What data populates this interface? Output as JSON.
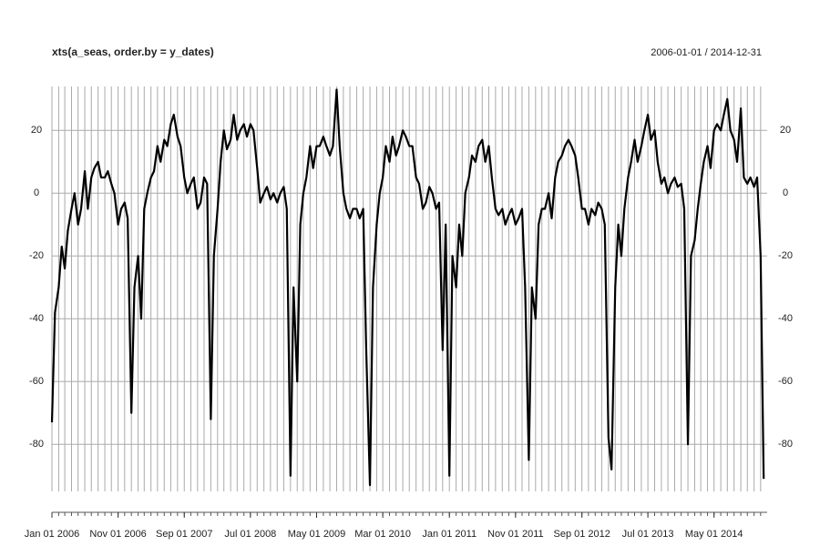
{
  "chart_data": {
    "type": "line",
    "title": "xts(a_seas, order.by = y_dates)",
    "subtitle": "2006-01-01 / 2014-12-31",
    "grid": true,
    "x_grid_interval": "month",
    "xlim": [
      "2006-01-01",
      "2014-12-31"
    ],
    "xticks": [
      {
        "value": "2006-01-01",
        "label": "Jan 01 2006"
      },
      {
        "value": "2006-11-01",
        "label": "Nov 01 2006"
      },
      {
        "value": "2007-09-01",
        "label": "Sep 01 2007"
      },
      {
        "value": "2008-07-01",
        "label": "Jul 01 2008"
      },
      {
        "value": "2009-05-01",
        "label": "May 01 2009"
      },
      {
        "value": "2010-03-01",
        "label": "Mar 01 2010"
      },
      {
        "value": "2011-01-01",
        "label": "Jan 01 2011"
      },
      {
        "value": "2011-11-01",
        "label": "Nov 01 2011"
      },
      {
        "value": "2012-09-01",
        "label": "Sep 01 2012"
      },
      {
        "value": "2013-07-01",
        "label": "Jul 01 2013"
      },
      {
        "value": "2014-05-01",
        "label": "May 01 2014"
      }
    ],
    "ylim": [
      -95,
      34
    ],
    "yticks": [
      -80,
      -60,
      -40,
      -20,
      0,
      20
    ],
    "x": [
      "2006-01-01",
      "2006-01-15",
      "2006-02-01",
      "2006-02-15",
      "2006-03-01",
      "2006-03-15",
      "2006-04-01",
      "2006-04-15",
      "2006-05-01",
      "2006-05-15",
      "2006-06-01",
      "2006-06-15",
      "2006-07-01",
      "2006-07-15",
      "2006-08-01",
      "2006-08-15",
      "2006-09-01",
      "2006-09-15",
      "2006-10-01",
      "2006-10-15",
      "2006-11-01",
      "2006-11-15",
      "2006-12-01",
      "2006-12-15",
      "2007-01-01",
      "2007-01-15",
      "2007-02-01",
      "2007-02-15",
      "2007-03-01",
      "2007-03-15",
      "2007-04-01",
      "2007-04-15",
      "2007-05-01",
      "2007-05-15",
      "2007-06-01",
      "2007-06-15",
      "2007-07-01",
      "2007-07-15",
      "2007-08-01",
      "2007-08-15",
      "2007-09-01",
      "2007-09-15",
      "2007-10-01",
      "2007-10-15",
      "2007-11-01",
      "2007-11-15",
      "2007-12-01",
      "2007-12-15",
      "2008-01-01",
      "2008-01-15",
      "2008-02-01",
      "2008-02-15",
      "2008-03-01",
      "2008-03-15",
      "2008-04-01",
      "2008-04-15",
      "2008-05-01",
      "2008-05-15",
      "2008-06-01",
      "2008-06-15",
      "2008-07-01",
      "2008-07-15",
      "2008-08-01",
      "2008-08-15",
      "2008-09-01",
      "2008-09-15",
      "2008-10-01",
      "2008-10-15",
      "2008-11-01",
      "2008-11-15",
      "2008-12-01",
      "2008-12-15",
      "2009-01-01",
      "2009-01-15",
      "2009-02-01",
      "2009-02-15",
      "2009-03-01",
      "2009-03-15",
      "2009-04-01",
      "2009-04-15",
      "2009-05-01",
      "2009-05-15",
      "2009-06-01",
      "2009-06-15",
      "2009-07-01",
      "2009-07-15",
      "2009-08-01",
      "2009-08-15",
      "2009-09-01",
      "2009-09-15",
      "2009-10-01",
      "2009-10-15",
      "2009-11-01",
      "2009-11-15",
      "2009-12-01",
      "2009-12-15",
      "2010-01-01",
      "2010-01-15",
      "2010-02-01",
      "2010-02-15",
      "2010-03-01",
      "2010-03-15",
      "2010-04-01",
      "2010-04-15",
      "2010-05-01",
      "2010-05-15",
      "2010-06-01",
      "2010-06-15",
      "2010-07-01",
      "2010-07-15",
      "2010-08-01",
      "2010-08-15",
      "2010-09-01",
      "2010-09-15",
      "2010-10-01",
      "2010-10-15",
      "2010-11-01",
      "2010-11-15",
      "2010-12-01",
      "2010-12-15",
      "2011-01-01",
      "2011-01-15",
      "2011-02-01",
      "2011-02-15",
      "2011-03-01",
      "2011-03-15",
      "2011-04-01",
      "2011-04-15",
      "2011-05-01",
      "2011-05-15",
      "2011-06-01",
      "2011-06-15",
      "2011-07-01",
      "2011-07-15",
      "2011-08-01",
      "2011-08-15",
      "2011-09-01",
      "2011-09-15",
      "2011-10-01",
      "2011-10-15",
      "2011-11-01",
      "2011-11-15",
      "2011-12-01",
      "2011-12-15",
      "2012-01-01",
      "2012-01-15",
      "2012-02-01",
      "2012-02-15",
      "2012-03-01",
      "2012-03-15",
      "2012-04-01",
      "2012-04-15",
      "2012-05-01",
      "2012-05-15",
      "2012-06-01",
      "2012-06-15",
      "2012-07-01",
      "2012-07-15",
      "2012-08-01",
      "2012-08-15",
      "2012-09-01",
      "2012-09-15",
      "2012-10-01",
      "2012-10-15",
      "2012-11-01",
      "2012-11-15",
      "2012-12-01",
      "2012-12-15",
      "2013-01-01",
      "2013-01-15",
      "2013-02-01",
      "2013-02-15",
      "2013-03-01",
      "2013-03-15",
      "2013-04-01",
      "2013-04-15",
      "2013-05-01",
      "2013-05-15",
      "2013-06-01",
      "2013-06-15",
      "2013-07-01",
      "2013-07-15",
      "2013-08-01",
      "2013-08-15",
      "2013-09-01",
      "2013-09-15",
      "2013-10-01",
      "2013-10-15",
      "2013-11-01",
      "2013-11-15",
      "2013-12-01",
      "2013-12-15",
      "2014-01-01",
      "2014-01-15",
      "2014-02-01",
      "2014-02-15",
      "2014-03-01",
      "2014-03-15",
      "2014-04-01",
      "2014-04-15",
      "2014-05-01",
      "2014-05-15",
      "2014-06-01",
      "2014-06-15",
      "2014-07-01",
      "2014-07-15",
      "2014-08-01",
      "2014-08-15",
      "2014-09-01",
      "2014-09-15",
      "2014-10-01",
      "2014-10-15",
      "2014-11-01",
      "2014-11-15",
      "2014-12-01",
      "2014-12-15"
    ],
    "color": "#000000",
    "values": [
      -73,
      -38,
      -30,
      -17,
      -24,
      -12,
      -5,
      0,
      -10,
      -5,
      7,
      -5,
      5,
      8,
      10,
      5,
      5,
      7,
      3,
      0,
      -10,
      -5,
      -3,
      -8,
      -70,
      -30,
      -20,
      -40,
      -5,
      0,
      5,
      7,
      15,
      10,
      17,
      15,
      22,
      25,
      18,
      15,
      5,
      0,
      3,
      5,
      -5,
      -3,
      5,
      3,
      -72,
      -20,
      -5,
      10,
      20,
      14,
      17,
      25,
      17,
      20,
      22,
      18,
      22,
      20,
      8,
      -3,
      0,
      2,
      -2,
      0,
      -3,
      0,
      2,
      -5,
      -90,
      -30,
      -60,
      -10,
      0,
      5,
      15,
      8,
      15,
      15,
      18,
      15,
      12,
      15,
      33,
      15,
      0,
      -5,
      -8,
      -5,
      -5,
      -8,
      -5,
      -50,
      -93,
      -30,
      -10,
      0,
      5,
      15,
      10,
      18,
      12,
      15,
      20,
      18,
      15,
      15,
      5,
      3,
      -5,
      -3,
      2,
      0,
      -5,
      -3,
      -50,
      -10,
      -90,
      -20,
      -30,
      -10,
      -20,
      0,
      5,
      12,
      10,
      15,
      17,
      10,
      15,
      5,
      -5,
      -7,
      -5,
      -10,
      -7,
      -5,
      -10,
      -8,
      -5,
      -30,
      -85,
      -30,
      -40,
      -10,
      -5,
      -5,
      0,
      -8,
      5,
      10,
      12,
      15,
      17,
      15,
      12,
      5,
      -5,
      -5,
      -10,
      -5,
      -7,
      -3,
      -5,
      -10,
      -78,
      -88,
      -30,
      -10,
      -20,
      -5,
      5,
      10,
      17,
      10,
      15,
      20,
      25,
      17,
      20,
      10,
      3,
      5,
      0,
      3,
      5,
      2,
      3,
      -5,
      -80,
      -20,
      -15,
      -5,
      3,
      10,
      15,
      8,
      20,
      22,
      20,
      25,
      30,
      20,
      17,
      10,
      27,
      5,
      3,
      5,
      2,
      5,
      -20,
      -91
    ]
  }
}
